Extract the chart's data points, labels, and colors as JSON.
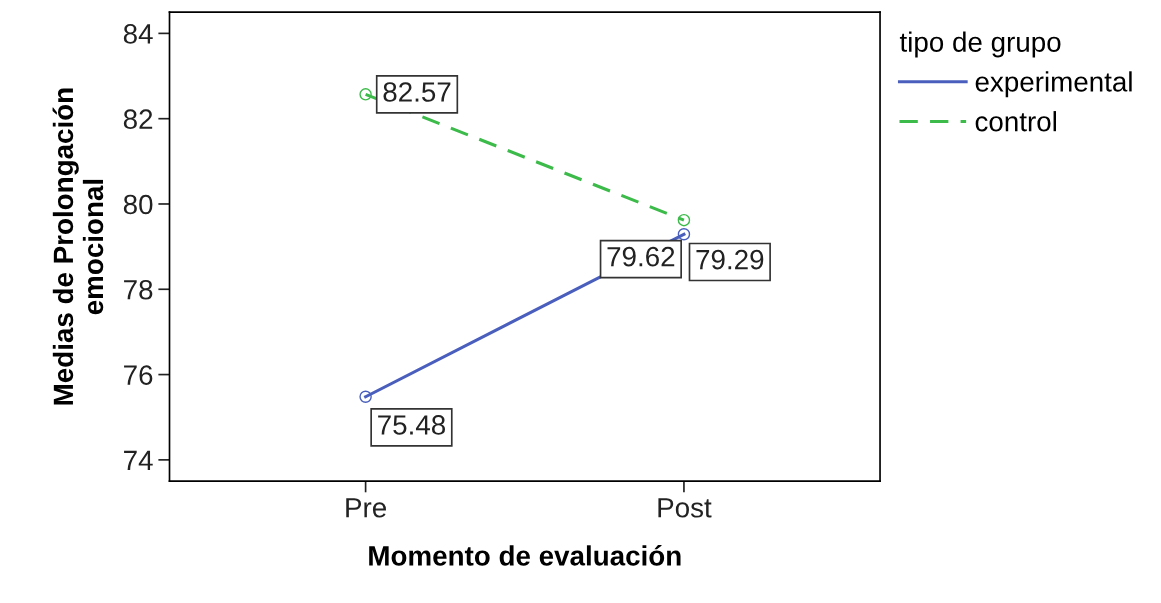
{
  "chart_data": {
    "type": "line",
    "xlabel": "Momento de evaluación",
    "ylabel": "Medias de Prolongación\nemocional",
    "legend_title": "tipo de grupo",
    "categories": [
      "Pre",
      "Post"
    ],
    "series": [
      {
        "name": "experimental",
        "color": "#4a5fbd",
        "values": [
          75.48,
          79.29
        ],
        "line_style": "solid"
      },
      {
        "name": "control",
        "color": "#3dbb4a",
        "values": [
          82.57,
          79.62
        ],
        "line_style": "dashed"
      }
    ],
    "ylim": [
      73.5,
      84.5
    ],
    "yticks": [
      74,
      76,
      78,
      80,
      82,
      84
    ],
    "grid": false,
    "legend": "top right",
    "marker": "circle",
    "data_labels": true
  }
}
